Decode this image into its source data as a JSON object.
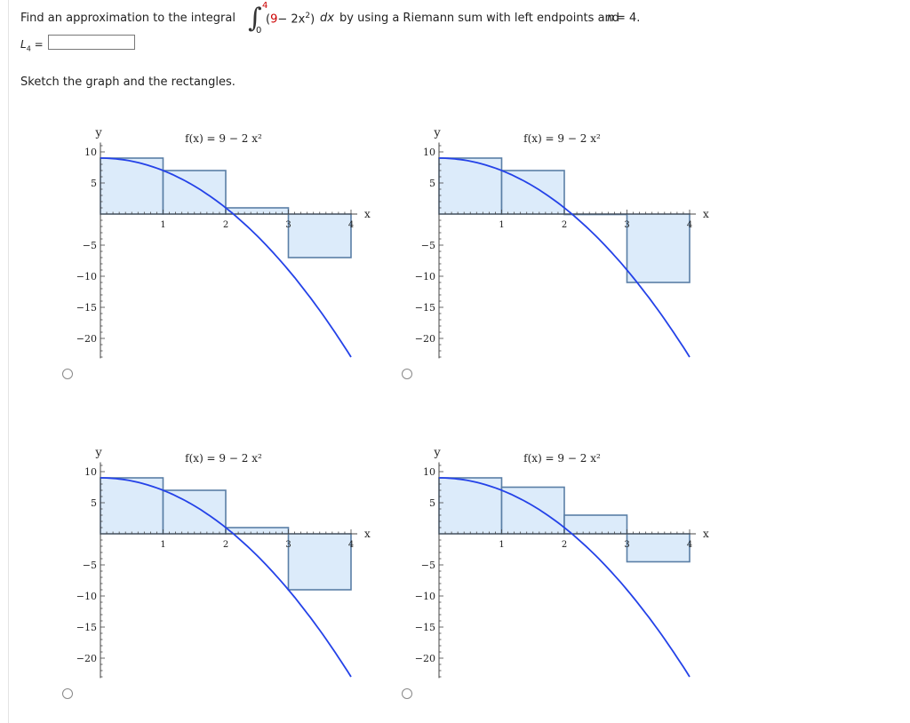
{
  "question": {
    "prefix": "Find an approximation to the integral",
    "integral_upper": "4",
    "integral_lower": "0",
    "integrand_open": "(",
    "integrand_const": "9",
    "integrand_minus": "− 2x",
    "integrand_exp": "2",
    "integrand_close": ")",
    "dx": "dx",
    "suffix": "by using a Riemann sum with left endpoints and",
    "n_var": "n",
    "n_eq": "= 4."
  },
  "answer": {
    "label": "L",
    "label_sub": "4",
    "label_eq": "=",
    "value": ""
  },
  "sketch_prompt": "Sketch the graph and the rectangles.",
  "options": [
    {
      "id": "A",
      "selected": false
    },
    {
      "id": "B",
      "selected": false
    },
    {
      "id": "C",
      "selected": false
    },
    {
      "id": "D",
      "selected": false
    }
  ],
  "chart_data": [
    {
      "type": "line",
      "annotation": "f(x) = 9 − 2 x²",
      "xlabel": "x",
      "ylabel": "y",
      "xlim": [
        0,
        4
      ],
      "ylim": [
        -20,
        10
      ],
      "x_ticks": [
        "1",
        "2",
        "3",
        "4"
      ],
      "y_ticks": [
        "10",
        "5",
        "−5",
        "−10",
        "−15",
        "−20"
      ],
      "curve": {
        "x": [
          0,
          4
        ],
        "formula": "9 - 2x^2"
      },
      "rectangles": [
        {
          "x0": 0,
          "x1": 1,
          "height": 9
        },
        {
          "x0": 1,
          "x1": 2,
          "height": 7
        },
        {
          "x0": 2,
          "x1": 3,
          "height": 1
        },
        {
          "x0": 3,
          "x1": 4,
          "height": -7
        }
      ]
    },
    {
      "type": "line",
      "annotation": "f(x) = 9 − 2 x²",
      "xlabel": "x",
      "ylabel": "y",
      "xlim": [
        0,
        4
      ],
      "ylim": [
        -20,
        10
      ],
      "x_ticks": [
        "1",
        "2",
        "3",
        "4"
      ],
      "y_ticks": [
        "10",
        "5",
        "−5",
        "−10",
        "−15",
        "−20"
      ],
      "curve": {
        "x": [
          0,
          4
        ],
        "formula": "9 - 2x^2"
      },
      "rectangles": [
        {
          "x0": 0,
          "x1": 1,
          "height": 9
        },
        {
          "x0": 1,
          "x1": 2,
          "height": 7
        },
        {
          "x0": 2,
          "x1": 3,
          "height": 0
        },
        {
          "x0": 3,
          "x1": 4,
          "height": -11
        }
      ]
    },
    {
      "type": "line",
      "annotation": "f(x) = 9 − 2 x²",
      "xlabel": "x",
      "ylabel": "y",
      "xlim": [
        0,
        4
      ],
      "ylim": [
        -20,
        10
      ],
      "x_ticks": [
        "1",
        "2",
        "3",
        "4"
      ],
      "y_ticks": [
        "10",
        "5",
        "−5",
        "−10",
        "−15",
        "−20"
      ],
      "curve": {
        "x": [
          0,
          4
        ],
        "formula": "9 - 2x^2"
      },
      "rectangles": [
        {
          "x0": 0,
          "x1": 1,
          "height": 9
        },
        {
          "x0": 1,
          "x1": 2,
          "height": 7
        },
        {
          "x0": 2,
          "x1": 3,
          "height": 1
        },
        {
          "x0": 3,
          "x1": 4,
          "height": -9
        }
      ]
    },
    {
      "type": "line",
      "annotation": "f(x) = 9 − 2 x²",
      "xlabel": "x",
      "ylabel": "y",
      "xlim": [
        0,
        4
      ],
      "ylim": [
        -20,
        10
      ],
      "x_ticks": [
        "1",
        "2",
        "3",
        "4"
      ],
      "y_ticks": [
        "10",
        "5",
        "−5",
        "−10",
        "−15",
        "−20"
      ],
      "curve": {
        "x": [
          0,
          4
        ],
        "formula": "9 - 2x^2"
      },
      "rectangles": [
        {
          "x0": 0,
          "x1": 1,
          "height": 9
        },
        {
          "x0": 1,
          "x1": 2,
          "height": 7.5
        },
        {
          "x0": 2,
          "x1": 3,
          "height": 3
        },
        {
          "x0": 3,
          "x1": 4,
          "height": -4.5
        }
      ]
    }
  ]
}
